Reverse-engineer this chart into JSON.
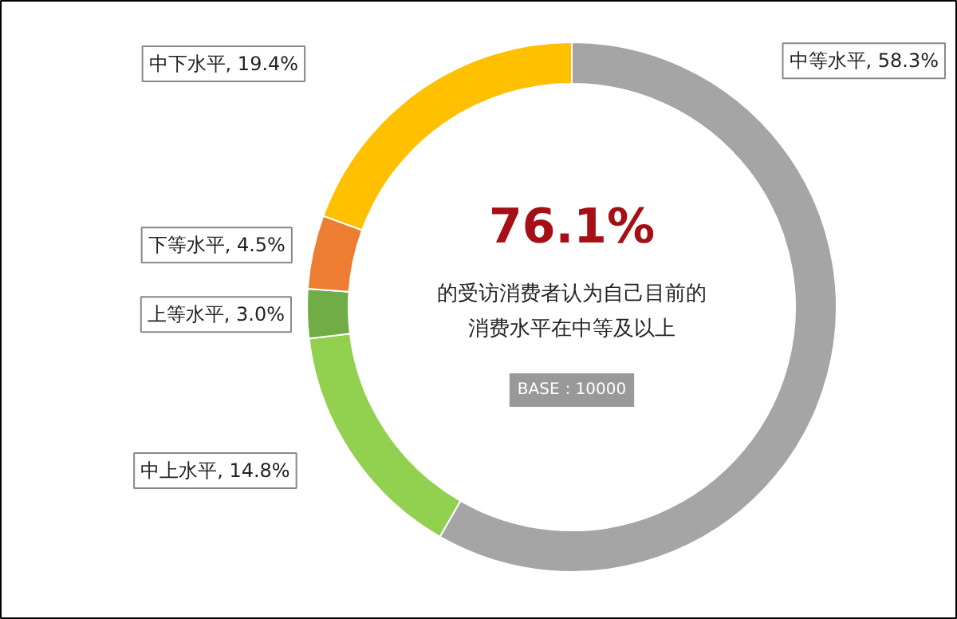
{
  "chart_data": {
    "type": "donut",
    "categories": [
      "中等水平",
      "中上水平",
      "上等水平",
      "下等水平",
      "中下水平"
    ],
    "values": [
      58.3,
      14.8,
      3.0,
      4.5,
      19.4
    ],
    "colors": [
      "#a5a5a5",
      "#92d050",
      "#70ad47",
      "#ed7d31",
      "#ffc000"
    ],
    "value_labels": [
      "58.3%",
      "14.8%",
      "3.0%",
      "4.5%",
      "19.4%"
    ],
    "annotations": [
      "76.1%",
      "的受访消费者认为自己目前的",
      "消费水平在中等及以上",
      "BASE：10000"
    ]
  }
}
